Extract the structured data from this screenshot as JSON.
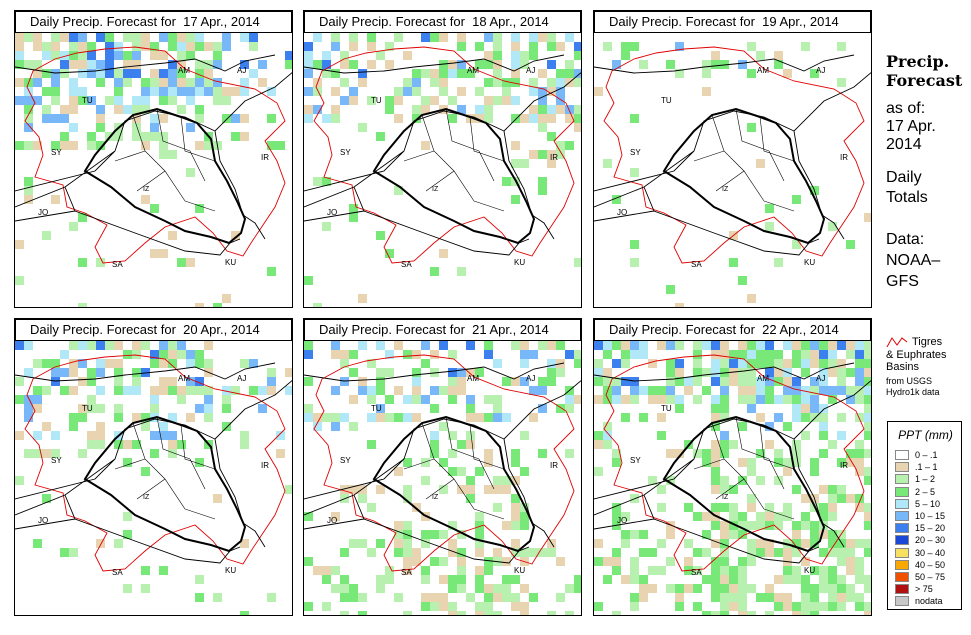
{
  "panels": [
    {
      "title": "Daily Precip. Forecast for  17 Apr., 2014",
      "intensity": 0.95,
      "pattern": "north-west"
    },
    {
      "title": "Daily Precip. Forecast for  18 Apr., 2014",
      "intensity": 0.6,
      "pattern": "north-east"
    },
    {
      "title": "Daily Precip. Forecast for  19 Apr., 2014",
      "intensity": 0.3,
      "pattern": "edges"
    },
    {
      "title": "Daily Precip. Forecast for  20 Apr., 2014",
      "intensity": 0.7,
      "pattern": "north-west"
    },
    {
      "title": "Daily Precip. Forecast for  21 Apr., 2014",
      "intensity": 0.8,
      "pattern": "spread"
    },
    {
      "title": "Daily Precip. Forecast for  22 Apr., 2014",
      "intensity": 0.95,
      "pattern": "east"
    }
  ],
  "map_labels": [
    "AM",
    "AJ",
    "TU",
    "SY",
    "IR",
    "JO",
    "SA",
    "KU",
    "IZ"
  ],
  "side": {
    "title_line1": "Precip.",
    "title_line2": "Forecast",
    "asof": "as of:",
    "date_line1": "17 Apr.",
    "date_line2": "2014",
    "daily1": "Daily",
    "daily2": "Totals",
    "data1": "Data:",
    "data2": "NOAA–",
    "data3": "GFS"
  },
  "basins": {
    "line1": "Tigres",
    "line2": "& Euphrates",
    "line3": "Basins",
    "line4": "from USGS",
    "line5": "Hydro1k data",
    "line_color": "#e00000"
  },
  "legend": {
    "title": "PPT (mm)",
    "items": [
      {
        "label": "0 – .1",
        "color": "#ffffff"
      },
      {
        "label": ".1 – 1",
        "color": "#e8d4b0"
      },
      {
        "label": "1 – 2",
        "color": "#b8f0b0"
      },
      {
        "label": "2 – 5",
        "color": "#78e878"
      },
      {
        "label": "5 – 10",
        "color": "#b0e8f8"
      },
      {
        "label": "10 – 15",
        "color": "#78b8f8"
      },
      {
        "label": "15 – 20",
        "color": "#3c80f0"
      },
      {
        "label": "20 – 30",
        "color": "#1c48d8"
      },
      {
        "label": "30 – 40",
        "color": "#f8e060"
      },
      {
        "label": "40 – 50",
        "color": "#f8a800"
      },
      {
        "label": "50 – 75",
        "color": "#f05000"
      },
      {
        "label": "> 75",
        "color": "#b01010"
      },
      {
        "label": "nodata",
        "color": "#c8c8c8"
      }
    ]
  }
}
